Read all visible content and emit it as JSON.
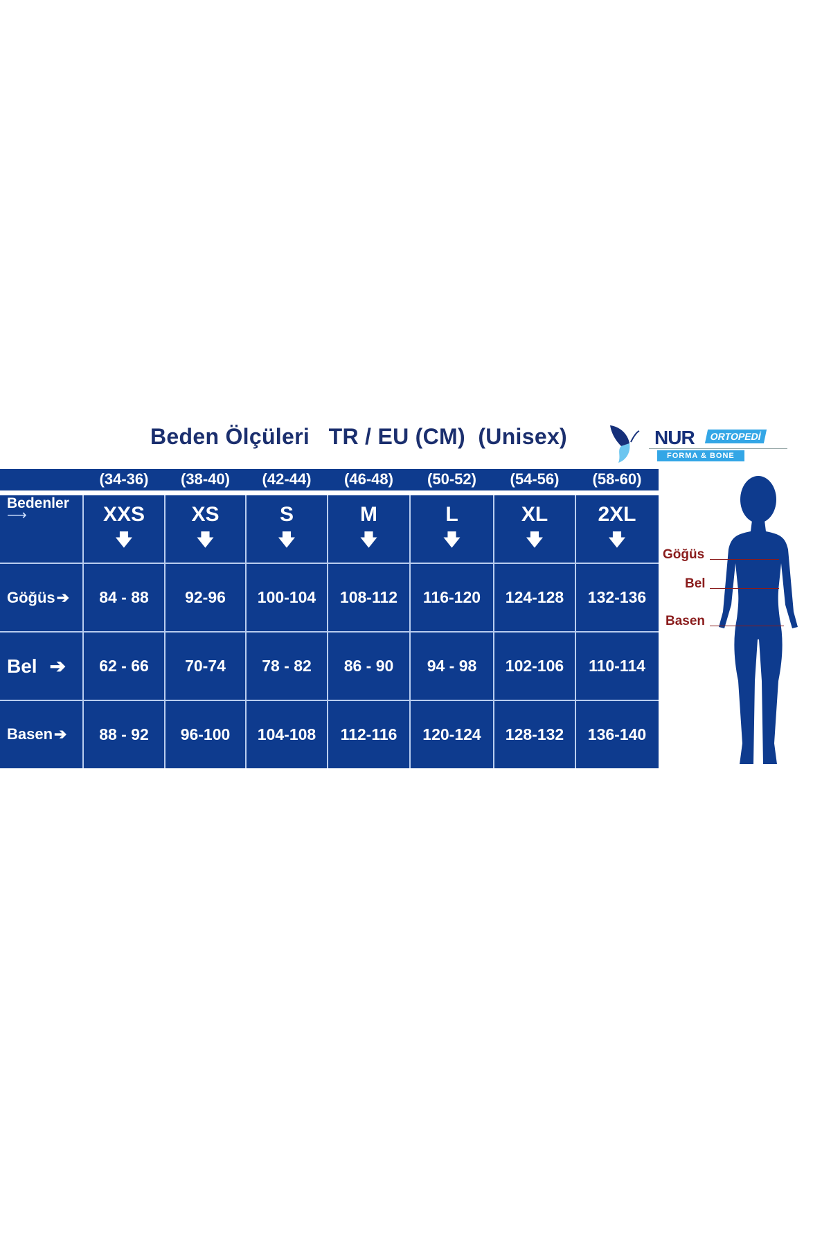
{
  "title": "Beden Ölçüleri   TR / EU (CM)  (Unisex)",
  "logo": {
    "name": "NUR",
    "tag": "ORTOPEDİ",
    "sub": "FORMA  &  BONE"
  },
  "colors": {
    "table_blue": "#0e3b8e",
    "title": "#1b2f6e",
    "label_red": "#8a1c1c",
    "logo_blue": "#33a6e6"
  },
  "eu_sizes": [
    "(34-36)",
    "(38-40)",
    "(42-44)",
    "(46-48)",
    "(50-52)",
    "(54-56)",
    "(58-60)"
  ],
  "header_label": "Bedenler",
  "sizes": [
    "XXS",
    "XS",
    "S",
    "M",
    "L",
    "XL",
    "2XL"
  ],
  "rows": [
    {
      "label": "Göğüs",
      "values": [
        "84 - 88",
        "92-96",
        "100-104",
        "108-112",
        "116-120",
        "124-128",
        "132-136"
      ]
    },
    {
      "label": "Bel",
      "values": [
        "62 - 66",
        "70-74",
        "78 - 82",
        "86 - 90",
        "94 - 98",
        "102-106",
        "110-114"
      ]
    },
    {
      "label": "Basen",
      "values": [
        "88 - 92",
        "96-100",
        "104-108",
        "112-116",
        "120-124",
        "128-132",
        "136-140"
      ]
    }
  ],
  "figure_labels": [
    "Göğüs",
    "Bel",
    "Basen"
  ]
}
